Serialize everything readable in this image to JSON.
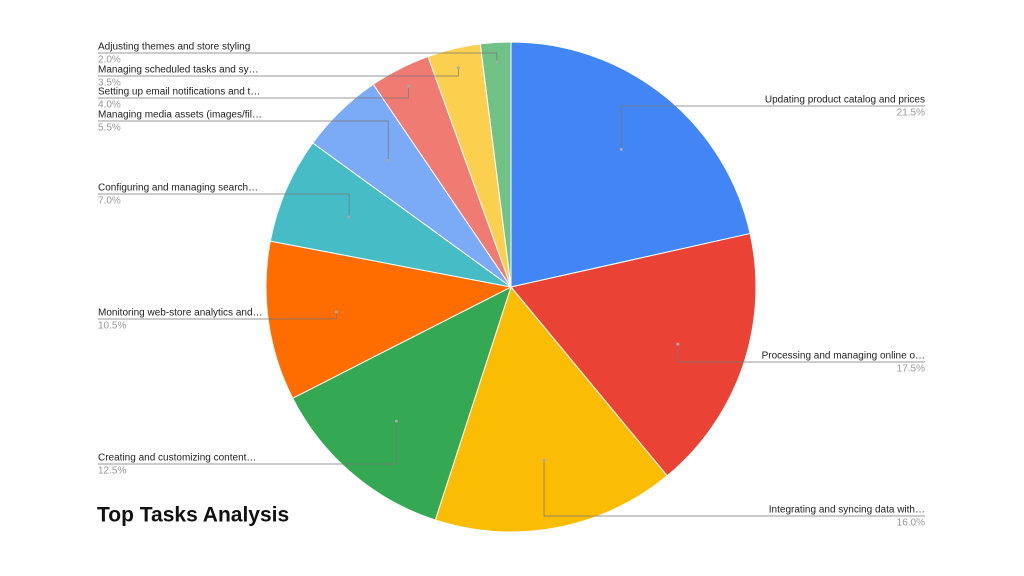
{
  "chart_data": {
    "type": "pie",
    "title": "Top Tasks Analysis",
    "categories": [
      "Updating product catalog and prices",
      "Processing and managing online o…",
      "Integrating and syncing data with…",
      "Creating and customizing content…",
      "Monitoring web-store analytics and…",
      "Configuring and managing search…",
      "Managing media assets (images/fil…",
      "Setting up email notifications and t…",
      "Managing scheduled tasks and sy…",
      "Adjusting themes and store styling"
    ],
    "values": [
      21.5,
      17.5,
      16.0,
      12.5,
      10.5,
      7.0,
      5.5,
      4.0,
      3.5,
      2.0
    ],
    "value_labels": [
      "21.5%",
      "17.5%",
      "16.0%",
      "12.5%",
      "10.5%",
      "7.0%",
      "5.5%",
      "4.0%",
      "3.5%",
      "2.0%"
    ],
    "colors": [
      "#4285f4",
      "#ea4335",
      "#fbbc04",
      "#34a853",
      "#ff6d01",
      "#46bdc6",
      "#7baaf7",
      "#f07b72",
      "#fcd04f",
      "#71c287"
    ]
  }
}
